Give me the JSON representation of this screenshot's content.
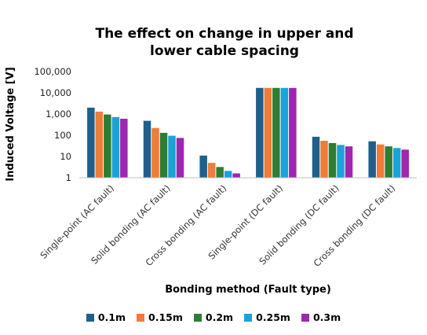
{
  "chart_data": {
    "type": "bar",
    "title_lines": [
      "The effect on change in upper and",
      "lower cable spacing"
    ],
    "xlabel": "Bonding method (Fault type)",
    "ylabel": "Induced Voltage [V]",
    "yscale": "log",
    "ylim": [
      1,
      100000
    ],
    "yticks": [
      1,
      10,
      100,
      1000,
      10000,
      100000
    ],
    "ytick_labels": [
      "1",
      "10",
      "100",
      "1,000",
      "10,000",
      "100,000"
    ],
    "categories": [
      "Single-point   (AC fault)",
      "Solid bonding (AC fault)",
      "Cross bonding (AC fault)",
      "Single-point     (DC fault)",
      "Solid bonding (DC fault)",
      "Cross bonding (DC fault)"
    ],
    "series": [
      {
        "name": "0.1m",
        "color": "#1f5f8b",
        "values": [
          2000,
          480,
          11,
          17000,
          85,
          52
        ]
      },
      {
        "name": "0.15m",
        "color": "#f07b3a",
        "values": [
          1300,
          220,
          5,
          17000,
          55,
          37
        ]
      },
      {
        "name": "0.2m",
        "color": "#2e7d32",
        "values": [
          950,
          130,
          3.2,
          17000,
          43,
          30
        ]
      },
      {
        "name": "0.25m",
        "color": "#1aa3d9",
        "values": [
          720,
          95,
          2.1,
          17000,
          35,
          25
        ]
      },
      {
        "name": "0.3m",
        "color": "#9c27b0",
        "values": [
          600,
          75,
          1.6,
          17000,
          30,
          21
        ]
      }
    ],
    "grid": false,
    "legend_position": "bottom"
  }
}
